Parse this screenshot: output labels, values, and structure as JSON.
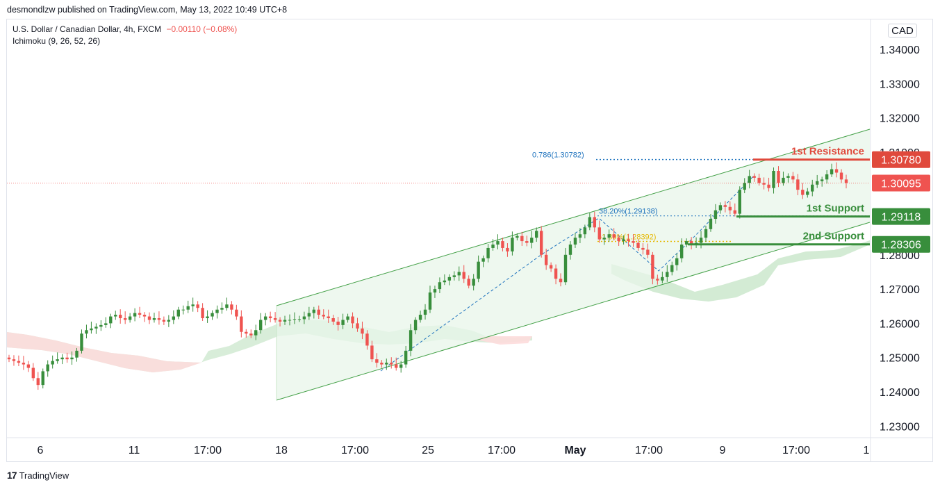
{
  "header": {
    "text": "desmondlzw published on TradingView.com, May 13, 2022 10:49 UTC+8"
  },
  "legend": {
    "symbol": "U.S. Dollar / Canadian Dollar, 4h, FXCM",
    "change": "−0.00110 (−0.08%)",
    "indicator": "Ichimoku (9, 26, 52, 26)"
  },
  "currency": "CAD",
  "footer": {
    "brand": "TradingView"
  },
  "colors": {
    "up": "#26a69a",
    "up_body": "#388e3c",
    "down": "#ef5350",
    "resistance": "#e0493c",
    "support": "#388e3c",
    "fib_blue": "#1e73be",
    "fib_yellow": "#e6b800",
    "channel": "#43a047",
    "cloud_bull": "#c8e6c9",
    "cloud_bear": "#fddcdc"
  },
  "chart_data": {
    "type": "candlestick",
    "y_axis": {
      "ticks": [
        "1.34000",
        "1.33000",
        "1.32000",
        "1.31000",
        "1.30000",
        "1.29000",
        "1.28000",
        "1.27000",
        "1.26000",
        "1.25000",
        "1.24000",
        "1.23000"
      ],
      "range": [
        1.2245,
        1.3432
      ]
    },
    "x_axis": {
      "ticks": [
        {
          "label": "6",
          "bold": false
        },
        {
          "label": "11",
          "bold": false
        },
        {
          "label": "17:00",
          "bold": false
        },
        {
          "label": "18",
          "bold": false
        },
        {
          "label": "17:00",
          "bold": false
        },
        {
          "label": "25",
          "bold": false
        },
        {
          "label": "17:00",
          "bold": false
        },
        {
          "label": "May",
          "bold": true
        },
        {
          "label": "17:00",
          "bold": false
        },
        {
          "label": "9",
          "bold": false
        },
        {
          "label": "17:00",
          "bold": false
        },
        {
          "label": "1",
          "bold": false
        }
      ]
    },
    "price_labels": [
      {
        "value": "1.30780",
        "color": "#e0493c"
      },
      {
        "value": "1.30095",
        "color": "#ef5350"
      },
      {
        "value": "1.29118",
        "color": "#388e3c"
      },
      {
        "value": "1.28306",
        "color": "#388e3c"
      }
    ],
    "levels": [
      {
        "name": "1st Resistance",
        "price": 1.3078,
        "color": "#e0493c"
      },
      {
        "name": "1st Support",
        "price": 1.29118,
        "color": "#388e3c"
      },
      {
        "name": "2nd Support",
        "price": 1.28306,
        "color": "#388e3c"
      }
    ],
    "fib_labels": [
      {
        "text": "0.786(1.30782)",
        "price": 1.30782,
        "color": "#1e73be"
      },
      {
        "text": "38.20%(1.29138)",
        "price": 1.29138,
        "color": "#1e73be"
      },
      {
        "text": "61.80%(1.28392)",
        "price": 1.28392,
        "color": "#e6b800"
      }
    ],
    "last_price": 1.30095,
    "closes": [
      1.2495,
      1.249,
      1.2485,
      1.248,
      1.247,
      1.244,
      1.242,
      1.246,
      1.248,
      1.249,
      1.2495,
      1.25,
      1.2495,
      1.25,
      1.252,
      1.257,
      1.258,
      1.2585,
      1.259,
      1.2595,
      1.26,
      1.262,
      1.2625,
      1.2615,
      1.261,
      1.262,
      1.263,
      1.2625,
      1.262,
      1.261,
      1.2615,
      1.261,
      1.2605,
      1.261,
      1.262,
      1.264,
      1.264,
      1.265,
      1.2655,
      1.2645,
      1.2615,
      1.262,
      1.263,
      1.264,
      1.2645,
      1.2655,
      1.264,
      1.262,
      1.2575,
      1.257,
      1.2565,
      1.258,
      1.261,
      1.262,
      1.2615,
      1.261,
      1.2605,
      1.261,
      1.261,
      1.2612,
      1.2612,
      1.262,
      1.263,
      1.264,
      1.2625,
      1.262,
      1.2615,
      1.2605,
      1.2595,
      1.261,
      1.262,
      1.26,
      1.2585,
      1.257,
      1.2535,
      1.2495,
      1.2485,
      1.248,
      1.2485,
      1.248,
      1.247,
      1.248,
      1.252,
      1.258,
      1.261,
      1.2625,
      1.264,
      1.269,
      1.27,
      1.272,
      1.2725,
      1.2735,
      1.274,
      1.275,
      1.273,
      1.271,
      1.273,
      1.278,
      1.279,
      1.282,
      1.283,
      1.284,
      1.282,
      1.281,
      1.285,
      1.2855,
      1.284,
      1.2835,
      1.285,
      1.287,
      1.28,
      1.277,
      1.276,
      1.273,
      1.272,
      1.28,
      1.283,
      1.285,
      1.286,
      1.288,
      1.291,
      1.288,
      1.2845,
      1.285,
      1.286,
      1.285,
      1.284,
      1.2845,
      1.284,
      1.2835,
      1.282,
      1.2815,
      1.28,
      1.273,
      1.2725,
      1.2735,
      1.275,
      1.277,
      1.279,
      1.283,
      1.284,
      1.283,
      1.2835,
      1.285,
      1.2875,
      1.2905,
      1.293,
      1.2945,
      1.294,
      1.293,
      1.292,
      1.299,
      1.301,
      1.303,
      1.3025,
      1.301,
      1.3005,
      1.2995,
      1.3045,
      1.301,
      1.3025,
      1.303,
      1.302,
      1.299,
      1.2975,
      1.2985,
      1.3005,
      1.3015,
      1.302,
      1.3035,
      1.305,
      1.304,
      1.302,
      1.301
    ]
  }
}
